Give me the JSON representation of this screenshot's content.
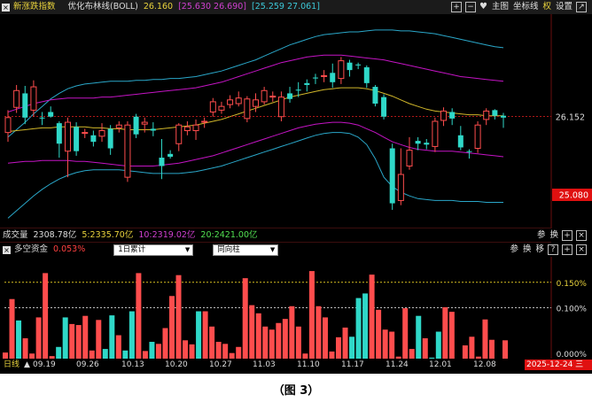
{
  "top": {
    "label": "新涨跌指数",
    "indicator": "优化布林线(BOLL)",
    "mid_value": "26.160",
    "upper_range": "[25.630 26.690]",
    "lower_range": "[25.259 27.061]",
    "buttons": [
      "主图",
      "坐标线",
      "权",
      "设置"
    ]
  },
  "price_labels": {
    "current": "26.152",
    "last": "25.080"
  },
  "volume": {
    "label": "成交量",
    "total": "2308.78亿",
    "ma5": "5:2335.70亿",
    "ma10": "10:2319.02亿",
    "ma20": "20:2421.00亿",
    "buttons": [
      "参",
      "换"
    ]
  },
  "fund": {
    "label": "多空资金",
    "value": "0.053%",
    "select1": "1日累计",
    "select2": "同向柱",
    "buttons": [
      "参",
      "换",
      "移"
    ]
  },
  "fund_ticks": [
    "0.150%",
    "0.100%",
    "0.000%"
  ],
  "timeline": {
    "period": "日线",
    "dates": [
      "09.19",
      "09.26",
      "10.13",
      "10.20",
      "10.27",
      "11.03",
      "11.10",
      "11.17",
      "11.24",
      "12.01",
      "12.08"
    ],
    "current": "2025-12-24 三"
  },
  "caption": "（图 3）",
  "colors": {
    "up": "#ff4d4d",
    "down": "#2fd8c8",
    "upper": "#2aa7c9",
    "inner": "#c414c4",
    "mid": "#d1b72a",
    "yellow_text": "#e8d23c",
    "magenta_text": "#d040d0",
    "cyan_text": "#3cc8d8",
    "green_text": "#52e052",
    "red_text": "#ff4040"
  },
  "chart_data": [
    {
      "type": "candlestick",
      "title": "新涨跌指数",
      "series_names": [
        "优化布林线(BOLL)"
      ],
      "ohlc": [
        {
          "o": 25.98,
          "c": 26.14,
          "h": 26.22,
          "l": 25.88
        },
        {
          "o": 26.25,
          "c": 26.43,
          "h": 26.49,
          "l": 26.19
        },
        {
          "o": 26.4,
          "c": 26.14,
          "h": 26.48,
          "l": 26.07
        },
        {
          "o": 26.22,
          "c": 26.47,
          "h": 26.54,
          "l": 26.15
        },
        {
          "o": 26.14,
          "c": 26.13,
          "h": 26.2,
          "l": 26.06
        },
        {
          "o": 26.2,
          "c": 26.15,
          "h": 26.26,
          "l": 26.14
        },
        {
          "o": 26.08,
          "c": 25.86,
          "h": 26.1,
          "l": 25.71
        },
        {
          "o": 25.78,
          "c": 26.09,
          "h": 26.14,
          "l": 25.5
        },
        {
          "o": 26.04,
          "c": 25.78,
          "h": 26.09,
          "l": 25.73
        },
        {
          "o": 25.98,
          "c": 25.98,
          "h": 26.02,
          "l": 25.92
        },
        {
          "o": 25.95,
          "c": 25.88,
          "h": 26.0,
          "l": 25.83
        },
        {
          "o": 25.94,
          "c": 26.0,
          "h": 26.08,
          "l": 25.88
        },
        {
          "o": 26.02,
          "c": 25.81,
          "h": 26.06,
          "l": 25.74
        },
        {
          "o": 26.03,
          "c": 26.06,
          "h": 26.1,
          "l": 25.98
        },
        {
          "o": 25.5,
          "c": 26.06,
          "h": 26.1,
          "l": 25.45
        },
        {
          "o": 26.15,
          "c": 25.96,
          "h": 26.18,
          "l": 25.92
        },
        {
          "o": 26.07,
          "c": 26.09,
          "h": 26.14,
          "l": 25.98
        },
        {
          "o": 26.02,
          "c": 26.0,
          "h": 26.09,
          "l": 25.94
        },
        {
          "o": 25.71,
          "c": 25.62,
          "h": 25.91,
          "l": 25.48
        },
        {
          "o": 25.75,
          "c": 25.72,
          "h": 25.79,
          "l": 25.7
        },
        {
          "o": 25.86,
          "c": 26.06,
          "h": 26.08,
          "l": 25.78
        },
        {
          "o": 26.0,
          "c": 26.04,
          "h": 26.1,
          "l": 25.95
        },
        {
          "o": 26.0,
          "c": 26.06,
          "h": 26.12,
          "l": 25.9
        },
        {
          "o": 26.09,
          "c": 26.1,
          "h": 26.14,
          "l": 26.03
        },
        {
          "o": 26.2,
          "c": 26.31,
          "h": 26.35,
          "l": 26.15
        },
        {
          "o": 26.22,
          "c": 26.26,
          "h": 26.31,
          "l": 26.18
        },
        {
          "o": 26.28,
          "c": 26.33,
          "h": 26.38,
          "l": 26.24
        },
        {
          "o": 26.29,
          "c": 26.35,
          "h": 26.42,
          "l": 26.26
        },
        {
          "o": 26.13,
          "c": 26.34,
          "h": 26.37,
          "l": 26.09
        },
        {
          "o": 26.26,
          "c": 26.33,
          "h": 26.4,
          "l": 26.2
        },
        {
          "o": 26.31,
          "c": 26.43,
          "h": 26.47,
          "l": 26.28
        },
        {
          "o": 26.36,
          "c": 26.37,
          "h": 26.42,
          "l": 26.31
        },
        {
          "o": 26.15,
          "c": 26.36,
          "h": 26.42,
          "l": 26.1
        },
        {
          "o": 26.4,
          "c": 26.34,
          "h": 26.47,
          "l": 26.3
        },
        {
          "o": 26.44,
          "c": 26.43,
          "h": 26.52,
          "l": 26.36
        },
        {
          "o": 26.51,
          "c": 26.49,
          "h": 26.55,
          "l": 26.42
        },
        {
          "o": 26.57,
          "c": 26.56,
          "h": 26.61,
          "l": 26.5
        },
        {
          "o": 26.59,
          "c": 26.59,
          "h": 26.65,
          "l": 26.52
        },
        {
          "o": 26.62,
          "c": 26.52,
          "h": 26.72,
          "l": 26.46
        },
        {
          "o": 26.56,
          "c": 26.75,
          "h": 26.79,
          "l": 26.5
        },
        {
          "o": 26.73,
          "c": 26.65,
          "h": 26.76,
          "l": 26.58
        },
        {
          "o": 26.71,
          "c": 26.7,
          "h": 26.73,
          "l": 26.66
        },
        {
          "o": 26.68,
          "c": 26.51,
          "h": 26.7,
          "l": 26.46
        },
        {
          "o": 26.47,
          "c": 26.29,
          "h": 26.49,
          "l": 26.26
        },
        {
          "o": 26.36,
          "c": 26.15,
          "h": 26.39,
          "l": 26.12
        },
        {
          "o": 25.81,
          "c": 25.22,
          "h": 25.86,
          "l": 25.15
        },
        {
          "o": 25.25,
          "c": 25.53,
          "h": 25.81,
          "l": 25.2
        },
        {
          "o": 25.62,
          "c": 25.79,
          "h": 25.93,
          "l": 25.58
        },
        {
          "o": 25.89,
          "c": 25.86,
          "h": 25.93,
          "l": 25.79
        },
        {
          "o": 25.87,
          "c": 25.85,
          "h": 25.91,
          "l": 25.8
        },
        {
          "o": 25.83,
          "c": 26.1,
          "h": 26.14,
          "l": 25.77
        },
        {
          "o": 26.11,
          "c": 26.21,
          "h": 26.25,
          "l": 26.05
        },
        {
          "o": 26.2,
          "c": 26.13,
          "h": 26.24,
          "l": 26.06
        },
        {
          "o": 25.95,
          "c": 25.82,
          "h": 26.05,
          "l": 25.79
        },
        {
          "o": 25.78,
          "c": 25.77,
          "h": 25.8,
          "l": 25.7
        },
        {
          "o": 25.81,
          "c": 26.06,
          "h": 26.1,
          "l": 25.76
        },
        {
          "o": 26.12,
          "c": 26.21,
          "h": 26.24,
          "l": 26.06
        },
        {
          "o": 26.22,
          "c": 26.16,
          "h": 26.23,
          "l": 26.12
        },
        {
          "o": 26.16,
          "c": 26.14,
          "h": 26.19,
          "l": 26.03
        }
      ],
      "bands": {
        "upper": [
          25.93,
          26.01,
          26.09,
          26.18,
          26.26,
          26.34,
          26.4,
          26.45,
          26.48,
          26.5,
          26.51,
          26.52,
          26.53,
          26.53,
          26.53,
          26.54,
          26.54,
          26.55,
          26.55,
          26.56,
          26.56,
          26.57,
          26.58,
          26.6,
          26.62,
          26.64,
          26.67,
          26.7,
          26.73,
          26.76,
          26.8,
          26.84,
          26.88,
          26.92,
          26.95,
          26.98,
          27.01,
          27.03,
          27.04,
          27.05,
          27.06,
          27.06,
          27.07,
          27.08,
          27.08,
          27.08,
          27.07,
          27.07,
          27.06,
          27.05,
          27.04,
          27.02,
          27.0,
          26.98,
          26.96,
          26.94,
          26.92,
          26.9,
          26.89
        ],
        "inner_upper": [
          26.2,
          26.23,
          26.26,
          26.29,
          26.31,
          26.33,
          26.34,
          26.35,
          26.35,
          26.35,
          26.35,
          26.36,
          26.36,
          26.37,
          26.38,
          26.39,
          26.4,
          26.41,
          26.42,
          26.43,
          26.44,
          26.45,
          26.46,
          26.48,
          26.5,
          26.52,
          26.55,
          26.58,
          26.61,
          26.64,
          26.67,
          26.7,
          26.73,
          26.75,
          26.77,
          26.79,
          26.8,
          26.81,
          26.81,
          26.81,
          26.8,
          26.79,
          26.78,
          26.77,
          26.76,
          26.74,
          26.72,
          26.7,
          26.68,
          26.66,
          26.64,
          26.62,
          26.6,
          26.58,
          26.57,
          26.56,
          26.55,
          26.54,
          26.53
        ],
        "mid": [
          25.99,
          26.0,
          26.01,
          26.02,
          26.03,
          26.03,
          26.04,
          26.04,
          26.04,
          26.04,
          26.03,
          26.03,
          26.02,
          26.02,
          26.01,
          26.01,
          26.01,
          26.01,
          26.02,
          26.03,
          26.04,
          26.05,
          26.06,
          26.08,
          26.1,
          26.12,
          26.15,
          26.18,
          26.21,
          26.24,
          26.27,
          26.3,
          26.33,
          26.36,
          26.38,
          26.4,
          26.42,
          26.44,
          26.45,
          26.46,
          26.46,
          26.46,
          26.45,
          26.43,
          26.4,
          26.37,
          26.33,
          26.29,
          26.26,
          26.23,
          26.21,
          26.2,
          26.19,
          26.18,
          26.17,
          26.17,
          26.16,
          26.16,
          26.16
        ],
        "inner_lower": [
          25.65,
          25.66,
          25.67,
          25.67,
          25.68,
          25.68,
          25.68,
          25.68,
          25.67,
          25.67,
          25.66,
          25.65,
          25.64,
          25.63,
          25.62,
          25.62,
          25.62,
          25.62,
          25.63,
          25.64,
          25.65,
          25.67,
          25.69,
          25.71,
          25.73,
          25.76,
          25.79,
          25.82,
          25.85,
          25.88,
          25.91,
          25.94,
          25.97,
          26.0,
          26.03,
          26.05,
          26.07,
          26.08,
          26.09,
          26.09,
          26.08,
          26.06,
          26.02,
          25.98,
          25.93,
          25.88,
          25.85,
          25.82,
          25.8,
          25.79,
          25.78,
          25.78,
          25.78,
          25.77,
          25.76,
          25.75,
          25.74,
          25.73,
          25.72
        ],
        "lower": [
          25.06,
          25.14,
          25.22,
          25.3,
          25.37,
          25.43,
          25.48,
          25.52,
          25.55,
          25.57,
          25.58,
          25.58,
          25.58,
          25.58,
          25.57,
          25.56,
          25.55,
          25.54,
          25.54,
          25.54,
          25.54,
          25.55,
          25.56,
          25.58,
          25.6,
          25.62,
          25.65,
          25.68,
          25.71,
          25.74,
          25.77,
          25.8,
          25.83,
          25.86,
          25.89,
          25.92,
          25.95,
          25.97,
          25.98,
          25.98,
          25.97,
          25.93,
          25.85,
          25.7,
          25.5,
          25.4,
          25.34,
          25.3,
          25.27,
          25.26,
          25.25,
          25.25,
          25.25,
          25.24,
          25.24,
          25.24,
          25.23,
          25.23,
          25.23
        ]
      },
      "ylim": [
        24.95,
        27.25
      ]
    },
    {
      "type": "bar",
      "title": "多空资金",
      "values": [
        0.012,
        0.117,
        0.075,
        0.04,
        0.01,
        0.081,
        0.168,
        0.005,
        0.023,
        0.081,
        0.068,
        0.066,
        0.084,
        0.016,
        0.076,
        0.019,
        0.085,
        0.046,
        0.016,
        0.093,
        0.168,
        0.015,
        0.033,
        0.029,
        0.06,
        0.123,
        0.164,
        0.036,
        0.028,
        0.093,
        0.093,
        0.063,
        0.033,
        0.029,
        0.011,
        0.023,
        0.158,
        0.105,
        0.089,
        0.063,
        0.057,
        0.07,
        0.078,
        0.103,
        0.063,
        0.01,
        0.172,
        0.103,
        0.081,
        0.014,
        0.042,
        0.061,
        0.043,
        0.119,
        0.128,
        0.165,
        0.096,
        0.057,
        0.053,
        0.004,
        0.099,
        0.019,
        0.084,
        0.04,
        0.002,
        0.053,
        0.101,
        0.092,
        0.0,
        0.026,
        0.043,
        0.004,
        0.077,
        0.037,
        0.0,
        0.036
      ],
      "colors_index": [
        0,
        0,
        1,
        0,
        0,
        0,
        0,
        0,
        1,
        1,
        0,
        0,
        0,
        0,
        0,
        1,
        1,
        0,
        1,
        1,
        0,
        0,
        1,
        0,
        0,
        0,
        0,
        0,
        0,
        1,
        0,
        0,
        0,
        0,
        0,
        0,
        0,
        0,
        0,
        0,
        0,
        0,
        0,
        0,
        0,
        0,
        0,
        0,
        0,
        0,
        0,
        0,
        1,
        1,
        1,
        0,
        0,
        0,
        0,
        0,
        0,
        0,
        1,
        0,
        1,
        1,
        0,
        0,
        0,
        0,
        0,
        0,
        0,
        0,
        0,
        0
      ],
      "ylim": [
        0,
        0.2
      ]
    }
  ]
}
